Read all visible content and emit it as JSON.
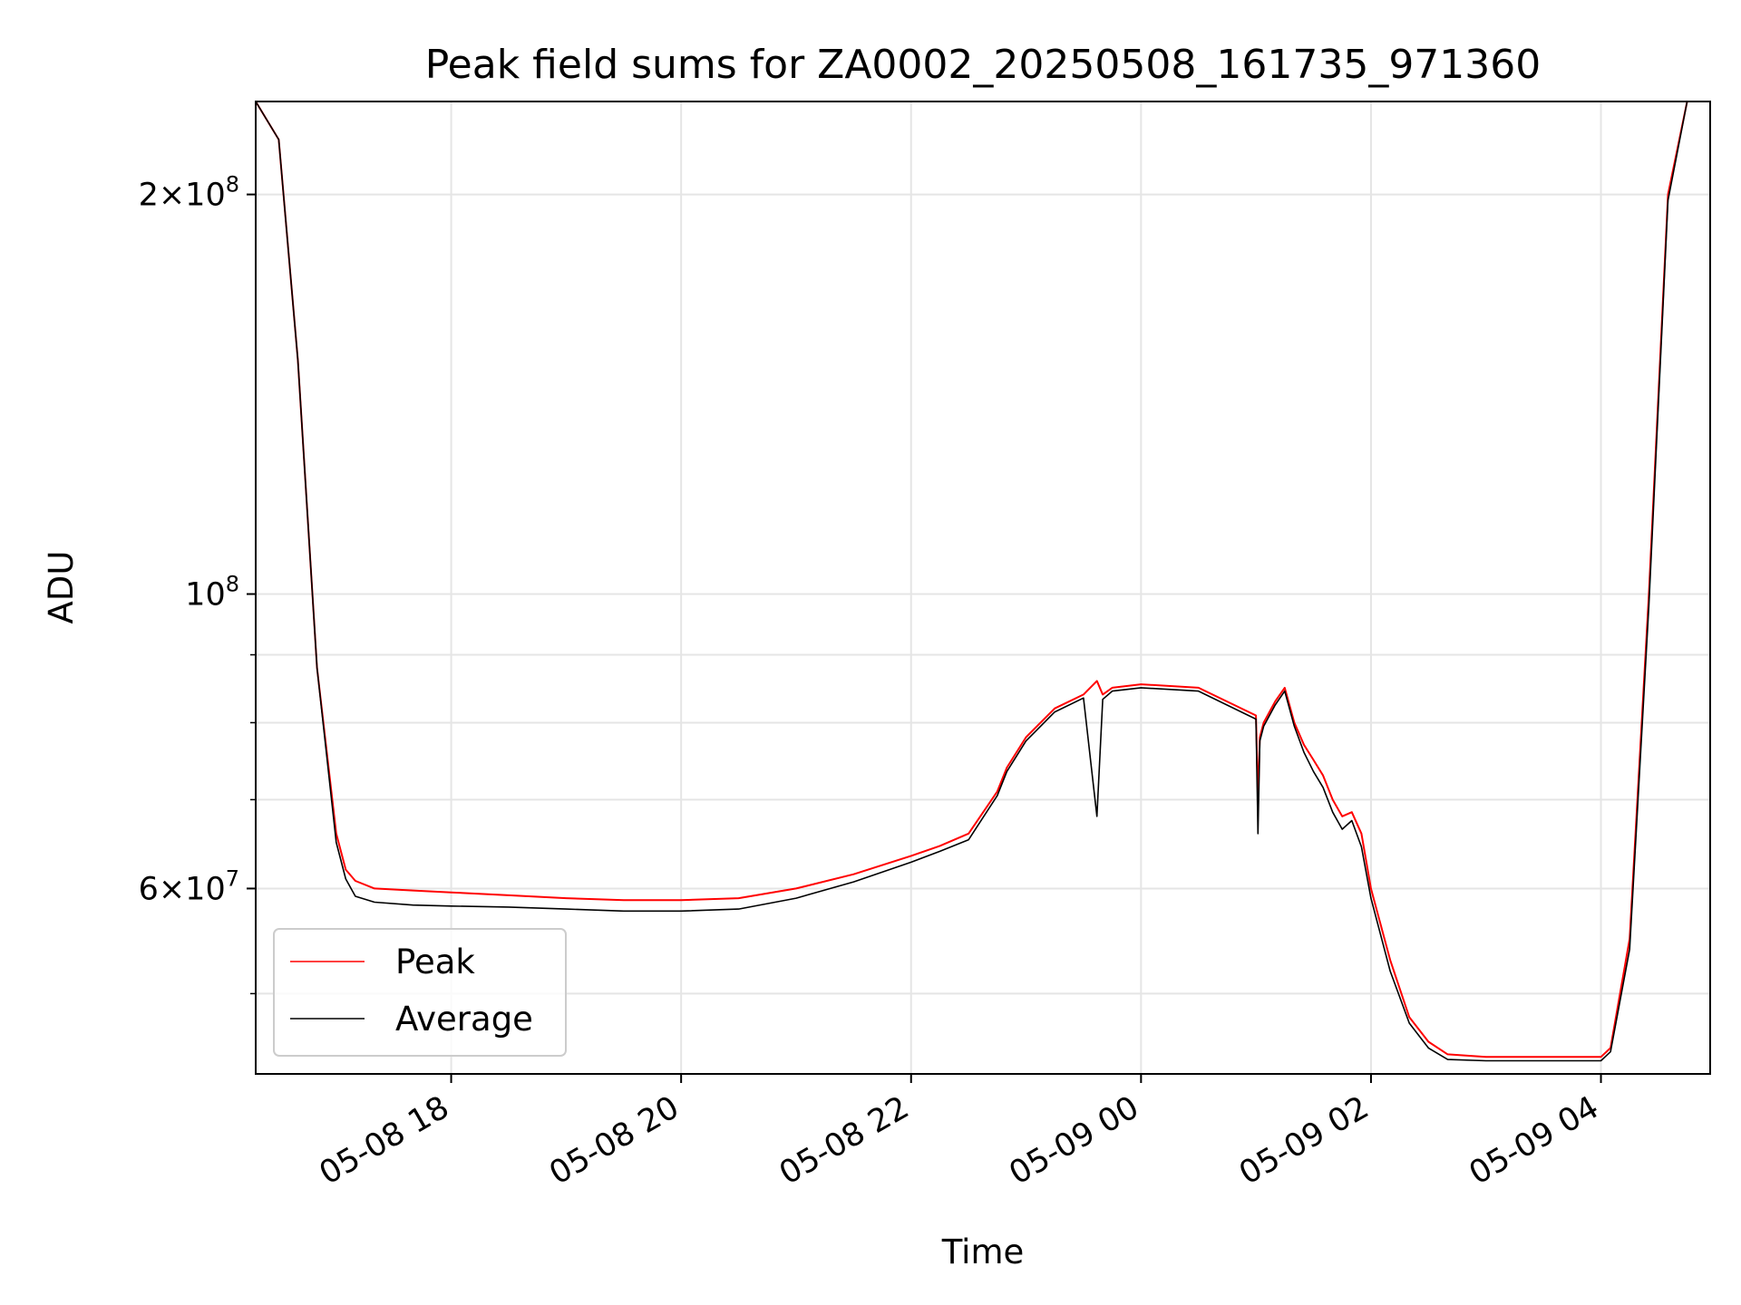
{
  "chart_data": {
    "type": "line",
    "title": "Peak field sums for ZA0002_20250508_161735_971360",
    "xlabel": "Time",
    "ylabel": "ADU",
    "yscale": "log",
    "grid": true,
    "legend_position": "lower-left",
    "xlim": [
      "2025-05-08 16:18",
      "2025-05-09 04:57"
    ],
    "ylim": [
      43500000,
      235000000
    ],
    "x_ticks": [
      {
        "value": "2025-05-08 18:00",
        "label": "05-08 18"
      },
      {
        "value": "2025-05-08 20:00",
        "label": "05-08 20"
      },
      {
        "value": "2025-05-08 22:00",
        "label": "05-08 22"
      },
      {
        "value": "2025-05-09 00:00",
        "label": "05-09 00"
      },
      {
        "value": "2025-05-09 02:00",
        "label": "05-09 02"
      },
      {
        "value": "2025-05-09 04:00",
        "label": "05-09 04"
      }
    ],
    "y_major_ticks": [
      {
        "value": 200000000,
        "base": "2×10",
        "exp": "8"
      },
      {
        "value": 100000000,
        "base": "10",
        "exp": "8"
      },
      {
        "value": 60000000,
        "base": "6×10",
        "exp": "7"
      }
    ],
    "y_minor_ticks": [
      50000000,
      70000000,
      80000000,
      90000000
    ],
    "series": [
      {
        "name": "Peak",
        "color": "#ff0000",
        "x": [
          "2025-05-08 16:18",
          "2025-05-08 16:30",
          "2025-05-08 16:40",
          "2025-05-08 16:50",
          "2025-05-08 17:00",
          "2025-05-08 17:05",
          "2025-05-08 17:10",
          "2025-05-08 17:20",
          "2025-05-08 17:40",
          "2025-05-08 18:00",
          "2025-05-08 18:30",
          "2025-05-08 19:00",
          "2025-05-08 19:30",
          "2025-05-08 20:00",
          "2025-05-08 20:30",
          "2025-05-08 21:00",
          "2025-05-08 21:30",
          "2025-05-08 22:00",
          "2025-05-08 22:15",
          "2025-05-08 22:30",
          "2025-05-08 22:45",
          "2025-05-08 22:50",
          "2025-05-08 23:00",
          "2025-05-08 23:15",
          "2025-05-08 23:30",
          "2025-05-08 23:37",
          "2025-05-08 23:40",
          "2025-05-08 23:45",
          "2025-05-09 00:00",
          "2025-05-09 00:30",
          "2025-05-09 01:00",
          "2025-05-09 01:01",
          "2025-05-09 01:02",
          "2025-05-09 01:04",
          "2025-05-09 01:10",
          "2025-05-09 01:15",
          "2025-05-09 01:20",
          "2025-05-09 01:25",
          "2025-05-09 01:30",
          "2025-05-09 01:35",
          "2025-05-09 01:40",
          "2025-05-09 01:45",
          "2025-05-09 01:50",
          "2025-05-09 01:55",
          "2025-05-09 02:00",
          "2025-05-09 02:10",
          "2025-05-09 02:20",
          "2025-05-09 02:30",
          "2025-05-09 02:40",
          "2025-05-09 03:00",
          "2025-05-09 03:30",
          "2025-05-09 04:00",
          "2025-05-09 04:05",
          "2025-05-09 04:15",
          "2025-05-09 04:25",
          "2025-05-09 04:35",
          "2025-05-09 04:45",
          "2025-05-09 04:50",
          "2025-05-09 04:57"
        ],
        "y": [
          235000000,
          220000000,
          150000000,
          88000000,
          66000000,
          62000000,
          60800000,
          60000000,
          59800000,
          59600000,
          59300000,
          59000000,
          58800000,
          58800000,
          59000000,
          60000000,
          61500000,
          63500000,
          64600000,
          66000000,
          71000000,
          74000000,
          78000000,
          82000000,
          84000000,
          86000000,
          84000000,
          85000000,
          85500000,
          85000000,
          81000000,
          70000000,
          78000000,
          80000000,
          83000000,
          85000000,
          80000000,
          77000000,
          75000000,
          73000000,
          70000000,
          68000000,
          68500000,
          66000000,
          60000000,
          53000000,
          48000000,
          46000000,
          45000000,
          44800000,
          44800000,
          44800000,
          45500000,
          55000000,
          100000000,
          200000000,
          235000000,
          235000000,
          235000000
        ]
      },
      {
        "name": "Average",
        "color": "#000000",
        "x": [
          "2025-05-08 16:18",
          "2025-05-08 16:30",
          "2025-05-08 16:40",
          "2025-05-08 16:50",
          "2025-05-08 17:00",
          "2025-05-08 17:05",
          "2025-05-08 17:10",
          "2025-05-08 17:20",
          "2025-05-08 17:40",
          "2025-05-08 18:00",
          "2025-05-08 18:30",
          "2025-05-08 19:00",
          "2025-05-08 19:30",
          "2025-05-08 20:00",
          "2025-05-08 20:30",
          "2025-05-08 21:00",
          "2025-05-08 21:30",
          "2025-05-08 22:00",
          "2025-05-08 22:15",
          "2025-05-08 22:30",
          "2025-05-08 22:45",
          "2025-05-08 22:50",
          "2025-05-08 23:00",
          "2025-05-08 23:15",
          "2025-05-08 23:30",
          "2025-05-08 23:37",
          "2025-05-08 23:40",
          "2025-05-08 23:45",
          "2025-05-09 00:00",
          "2025-05-09 00:30",
          "2025-05-09 01:00",
          "2025-05-09 01:01",
          "2025-05-09 01:02",
          "2025-05-09 01:04",
          "2025-05-09 01:10",
          "2025-05-09 01:15",
          "2025-05-09 01:20",
          "2025-05-09 01:25",
          "2025-05-09 01:30",
          "2025-05-09 01:35",
          "2025-05-09 01:40",
          "2025-05-09 01:45",
          "2025-05-09 01:50",
          "2025-05-09 01:55",
          "2025-05-09 02:00",
          "2025-05-09 02:10",
          "2025-05-09 02:20",
          "2025-05-09 02:30",
          "2025-05-09 02:40",
          "2025-05-09 03:00",
          "2025-05-09 03:30",
          "2025-05-09 04:00",
          "2025-05-09 04:05",
          "2025-05-09 04:15",
          "2025-05-09 04:25",
          "2025-05-09 04:35",
          "2025-05-09 04:45",
          "2025-05-09 04:50",
          "2025-05-09 04:57"
        ],
        "y": [
          235000000,
          220000000,
          150000000,
          88000000,
          65000000,
          61000000,
          59200000,
          58600000,
          58300000,
          58200000,
          58100000,
          57900000,
          57700000,
          57700000,
          57900000,
          59000000,
          60700000,
          62800000,
          64000000,
          65300000,
          70500000,
          73500000,
          77500000,
          81500000,
          83500000,
          68000000,
          83300000,
          84500000,
          85000000,
          84500000,
          80500000,
          66000000,
          77500000,
          79500000,
          82500000,
          84500000,
          79500000,
          76000000,
          73500000,
          71500000,
          68500000,
          66500000,
          67500000,
          64500000,
          59000000,
          52000000,
          47500000,
          45500000,
          44600000,
          44500000,
          44500000,
          44500000,
          45200000,
          54000000,
          98000000,
          198000000,
          235000000,
          235000000,
          235000000
        ]
      }
    ]
  }
}
